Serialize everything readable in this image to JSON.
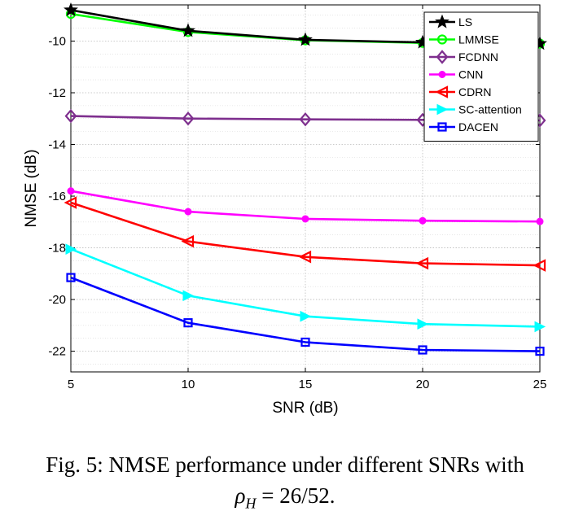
{
  "chart_data": {
    "type": "line",
    "title": "",
    "xlabel": "SNR (dB)",
    "ylabel": "NMSE (dB)",
    "xlim": [
      5,
      25
    ],
    "ylim": [
      -22.8,
      -8.6
    ],
    "x": [
      5,
      10,
      15,
      20,
      25
    ],
    "xticks": [
      "5",
      "10",
      "15",
      "20",
      "25"
    ],
    "yticks": [
      "-10",
      "-12",
      "-14",
      "-16",
      "-18",
      "-20",
      "-22"
    ],
    "ytick_values": [
      -10,
      -12,
      -14,
      -16,
      -18,
      -20,
      -22
    ],
    "grid": "on (major and minor)",
    "legend_position": "top-right",
    "series": [
      {
        "name": "LS",
        "color": "#000000",
        "marker": "star",
        "values": [
          -8.8,
          -9.6,
          -9.95,
          -10.05,
          -10.1
        ]
      },
      {
        "name": "LMMSE",
        "color": "#00ff00",
        "marker": "circle",
        "values": [
          -8.95,
          -9.65,
          -9.97,
          -10.07,
          -10.1
        ]
      },
      {
        "name": "FCDNN",
        "color": "#7e2f8e",
        "marker": "diamond",
        "values": [
          -12.9,
          -13.0,
          -13.03,
          -13.05,
          -13.07
        ]
      },
      {
        "name": "CNN",
        "color": "#ff00ff",
        "marker": "circle-filled",
        "values": [
          -15.8,
          -16.6,
          -16.88,
          -16.95,
          -16.98
        ]
      },
      {
        "name": "CDRN",
        "color": "#ff0000",
        "marker": "triangle-left",
        "values": [
          -16.25,
          -17.75,
          -18.35,
          -18.6,
          -18.68
        ]
      },
      {
        "name": "SC-attention",
        "color": "#00ffff",
        "marker": "triangle-right",
        "values": [
          -18.05,
          -19.85,
          -20.65,
          -20.95,
          -21.05
        ]
      },
      {
        "name": "DACEN",
        "color": "#0000ff",
        "marker": "square",
        "values": [
          -19.15,
          -20.9,
          -21.65,
          -21.95,
          -22.0
        ]
      }
    ]
  },
  "caption": {
    "line1": "Fig. 5: NMSE performance under different SNRs with",
    "line2_symbol": "ρ",
    "line2_subscript": "H",
    "line2_rest": " = 26/52."
  }
}
